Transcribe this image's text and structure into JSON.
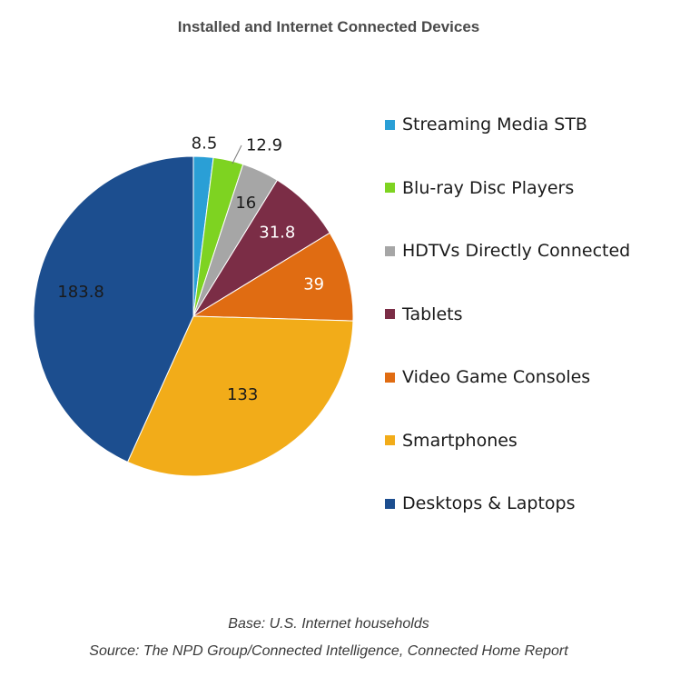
{
  "chart_data": {
    "type": "pie",
    "title": "Installed and Internet Connected Devices",
    "categories": [
      "Streaming Media STB",
      "Blu-ray Disc Players",
      "HDTVs Directly Connected",
      "Tablets",
      "Video Game Consoles",
      "Smartphones",
      "Desktops & Laptops"
    ],
    "values": [
      8.5,
      12.9,
      16,
      31.8,
      39,
      133,
      183.8
    ],
    "value_labels": [
      "8.5",
      "12.9",
      "16",
      "31.8",
      "39",
      "133",
      "183.8"
    ],
    "colors": [
      "#2a9fd6",
      "#7ed321",
      "#a6a6a6",
      "#7b2d46",
      "#e06c12",
      "#f2ac19",
      "#1c4e8f"
    ],
    "label_colors": [
      "#1a1a1a",
      "#1a1a1a",
      "#1a1a1a",
      "#ffffff",
      "#ffffff",
      "#1a1a1a",
      "#1a1a1a"
    ],
    "start_angle_deg": 0,
    "direction": "clockwise",
    "legend_position": "right"
  },
  "footer": {
    "base": "Base: U.S. Internet households",
    "source": "Source: The NPD Group/Connected Intelligence, Connected Home Report"
  }
}
